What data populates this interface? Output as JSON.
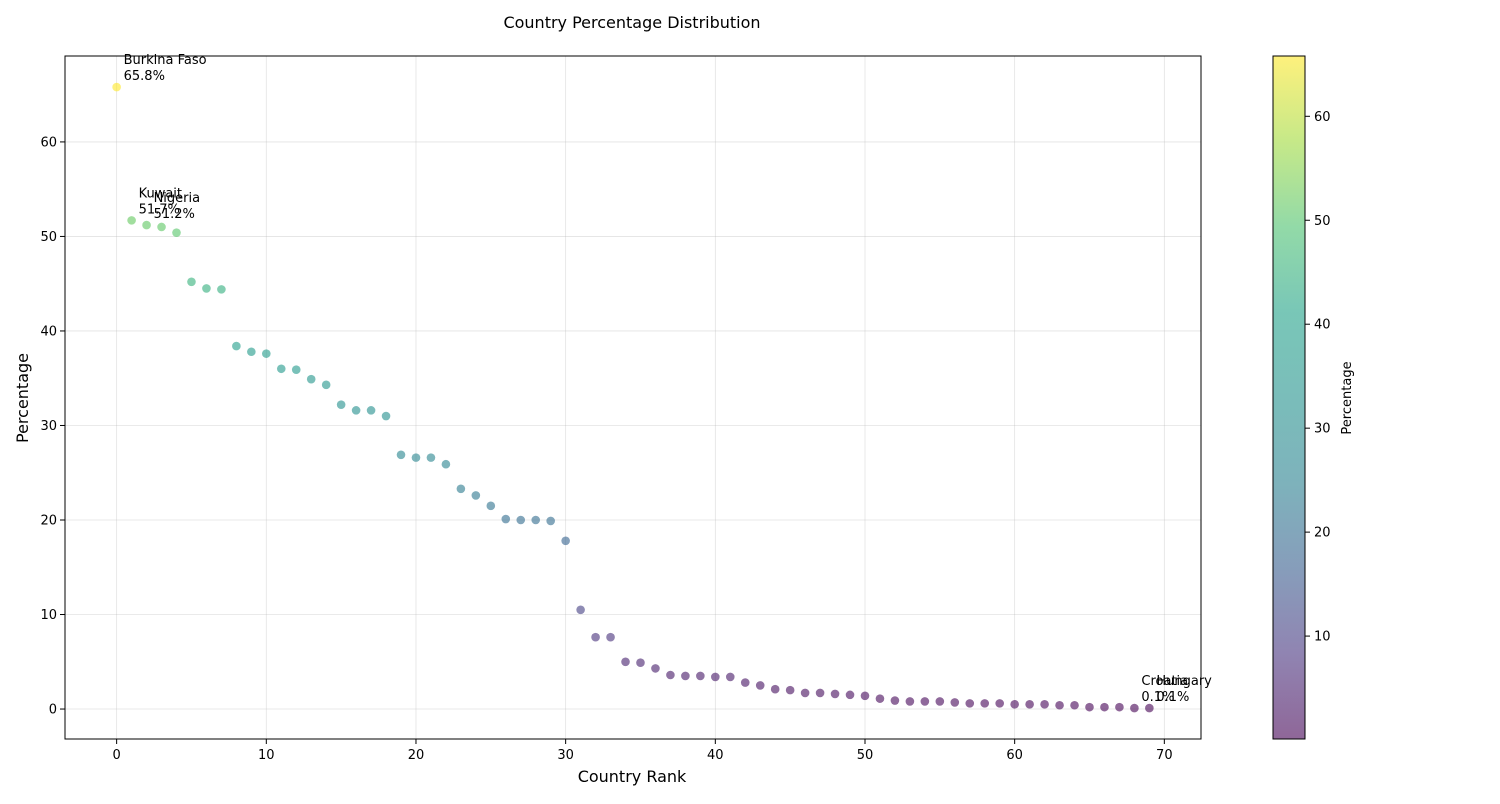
{
  "chart_data": {
    "type": "scatter",
    "title": "Country Percentage Distribution",
    "xlabel": "Country Rank",
    "ylabel": "Percentage",
    "xlim": [
      -3.45,
      72.45
    ],
    "ylim": [
      -3.17,
      69.09
    ],
    "x_ticks": [
      0,
      10,
      20,
      30,
      40,
      50,
      60,
      70
    ],
    "y_ticks": [
      0,
      10,
      20,
      30,
      40,
      50,
      60
    ],
    "grid": true,
    "colormap": "viridis",
    "colorbar": {
      "label": "Percentage",
      "ticks": [
        10,
        20,
        30,
        40,
        50,
        60
      ],
      "min": 0.1,
      "max": 65.8
    },
    "series": [
      {
        "x": [
          0,
          1,
          2,
          3,
          4,
          5,
          6,
          7,
          8,
          9,
          10,
          11,
          12,
          13,
          14,
          15,
          16,
          17,
          18,
          19,
          20,
          21,
          22,
          23,
          24,
          25,
          26,
          27,
          28,
          29,
          30,
          31,
          32,
          33,
          34,
          35,
          36,
          37,
          38,
          39,
          40,
          41,
          42,
          43,
          44,
          45,
          46,
          47,
          48,
          49,
          50,
          51,
          52,
          53,
          54,
          55,
          56,
          57,
          58,
          59,
          60,
          61,
          62,
          63,
          64,
          65,
          66,
          67,
          68,
          69
        ],
        "y": [
          65.8,
          51.7,
          51.2,
          51.0,
          50.4,
          45.2,
          44.5,
          44.4,
          38.4,
          37.8,
          37.6,
          36.0,
          35.9,
          34.9,
          34.3,
          32.2,
          31.6,
          31.6,
          31.0,
          26.9,
          26.6,
          26.6,
          25.9,
          23.3,
          22.6,
          21.5,
          20.1,
          20.0,
          20.0,
          19.9,
          17.8,
          10.5,
          7.6,
          7.6,
          5.0,
          4.9,
          4.3,
          3.6,
          3.5,
          3.5,
          3.4,
          3.4,
          2.8,
          2.5,
          2.1,
          2.0,
          1.7,
          1.7,
          1.6,
          1.5,
          1.4,
          1.1,
          0.9,
          0.8,
          0.8,
          0.8,
          0.7,
          0.6,
          0.6,
          0.6,
          0.5,
          0.5,
          0.5,
          0.4,
          0.4,
          0.2,
          0.2,
          0.2,
          0.1,
          0.1
        ]
      }
    ],
    "annotations": [
      {
        "x": 0,
        "y": 65.8,
        "label": "Burkina Faso",
        "value_text": "65.8%"
      },
      {
        "x": 1,
        "y": 51.7,
        "label": "Kuwait",
        "value_text": "51.7%"
      },
      {
        "x": 2,
        "y": 51.2,
        "label": "Nigeria",
        "value_text": "51.2%"
      },
      {
        "x": 68,
        "y": 0.1,
        "label": "Croatia",
        "value_text": "0.1%"
      },
      {
        "x": 69,
        "y": 0.1,
        "label": "Hungary",
        "value_text": "0.1%"
      }
    ]
  }
}
